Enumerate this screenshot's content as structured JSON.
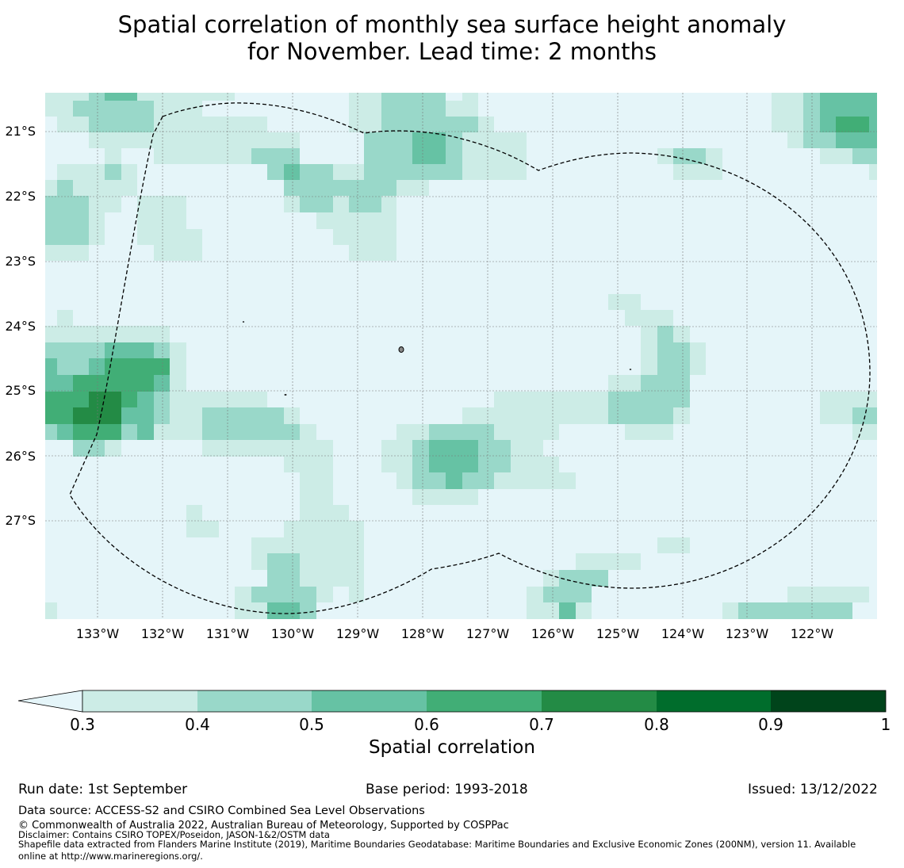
{
  "title": {
    "line1": "Spatial correlation of monthly sea surface height anomaly",
    "line2": "for November. Lead time: 2 months"
  },
  "map": {
    "lon_labels": [
      "133°W",
      "132°W",
      "131°W",
      "130°W",
      "129°W",
      "128°W",
      "127°W",
      "126°W",
      "125°W",
      "124°W",
      "123°W",
      "122°W"
    ],
    "lat_labels": [
      "21°S",
      "22°S",
      "23°S",
      "24°S",
      "25°S",
      "26°S",
      "27°S"
    ],
    "colors": {
      "background": "#e5f5f9",
      "c30": "#ccece6",
      "c40": "#99d8c9",
      "c50": "#66c2a4",
      "c60": "#41ae76",
      "c70": "#238b45",
      "c80": "#006d2c",
      "c90": "#00441b"
    }
  },
  "colorbar": {
    "label": "Spatial correlation",
    "ticks": [
      "0.3",
      "0.4",
      "0.5",
      "0.6",
      "0.7",
      "0.8",
      "0.9",
      "1"
    ]
  },
  "footer": {
    "run_date": "Run date: 1st September",
    "base_period": "Base period: 1993-2018",
    "issued": "Issued: 13/12/2022",
    "data_source": "Data source: ACCESS-S2 and CSIRO Combined Sea Level Observations",
    "copyright": "© Commonwealth of Australia 2022, Australian Bureau of Meteorology, Supported by COSPPac",
    "disclaimer": "Disclaimer: Contains CSIRO TOPEX/Poseidon, JASON-1&2/OSTM data",
    "shapefile1": "Shapefile data extracted from Flanders Marine Institute (2019), Maritime Boundaries Geodatabase: Maritime Boundaries and Exclusive Economic Zones (200NM), version 11. Available",
    "shapefile2": "online at http://www.marineregions.org/."
  }
}
